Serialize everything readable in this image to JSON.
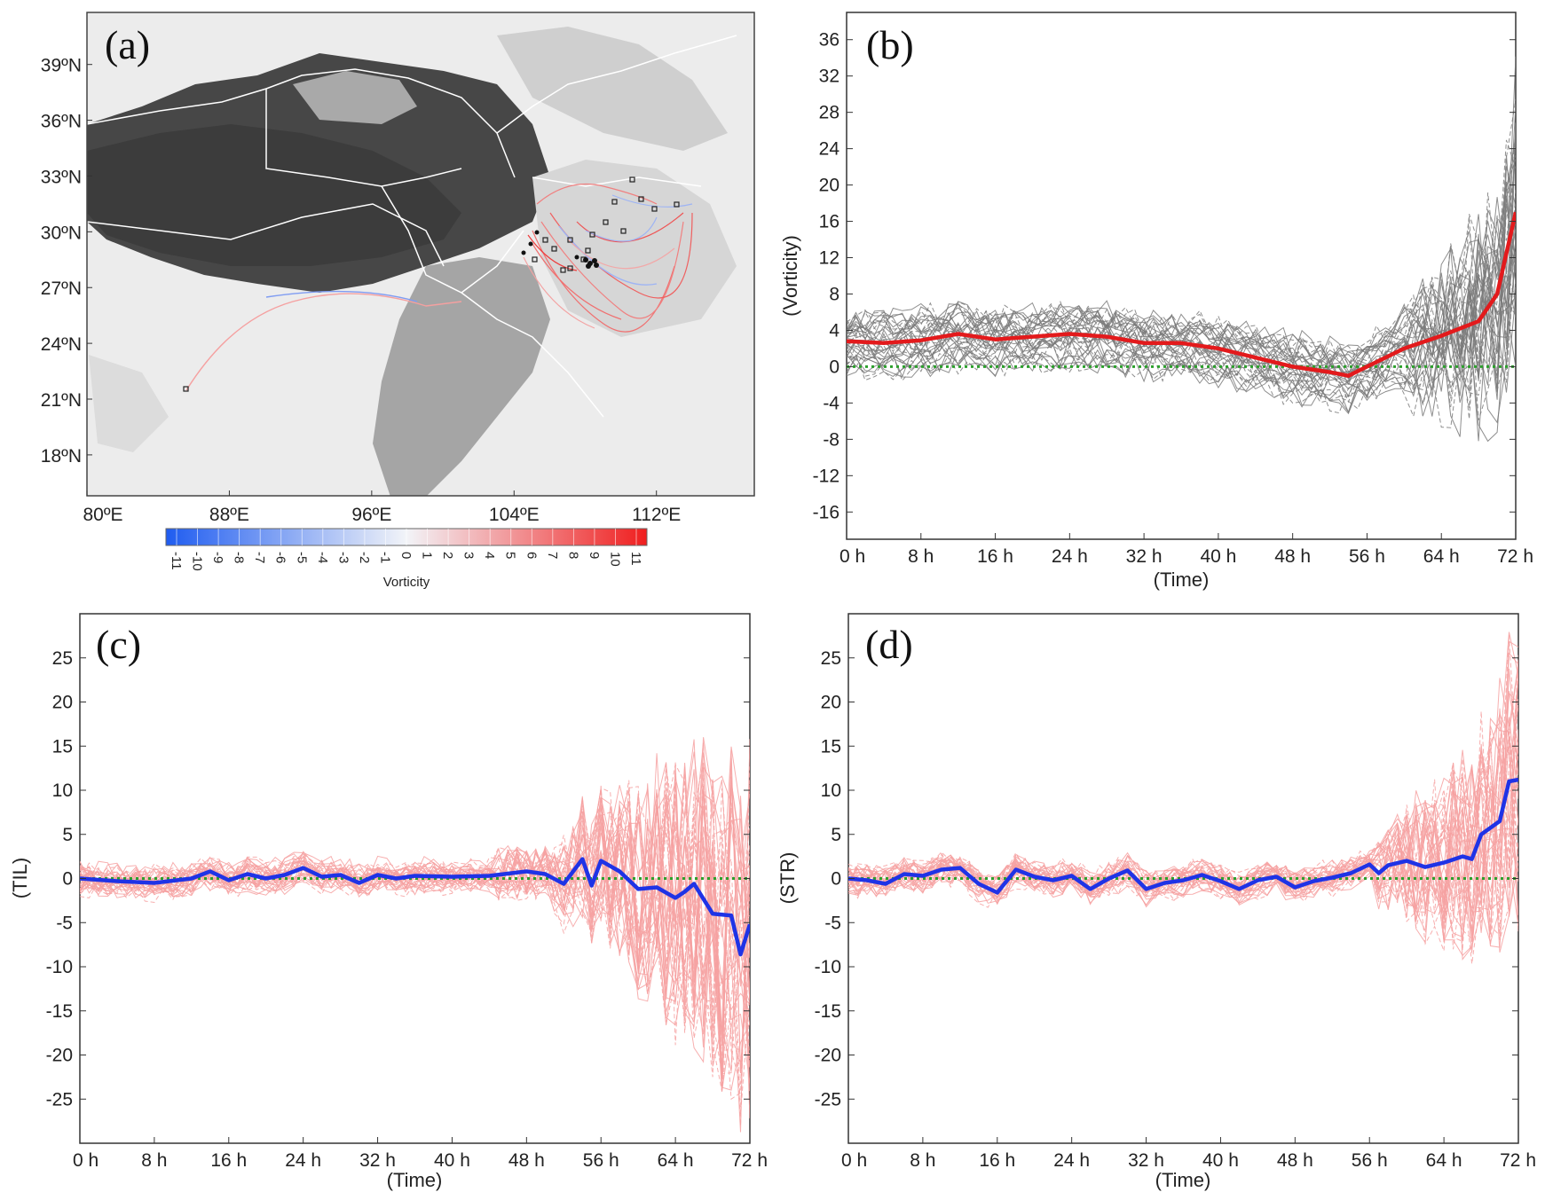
{
  "panels": {
    "a": {
      "label": "(a)"
    },
    "b": {
      "label": "(b)"
    },
    "c": {
      "label": "(c)"
    },
    "d": {
      "label": "(d)"
    }
  },
  "chart_data": [
    {
      "panel": "a",
      "type": "map",
      "lat_ticks": [
        "39ºN",
        "36ºN",
        "33ºN",
        "30ºN",
        "27ºN",
        "24ºN",
        "21ºN",
        "18ºN"
      ],
      "lon_ticks": [
        "80ºE",
        "88ºE",
        "96ºE",
        "104ºE",
        "112ºE"
      ],
      "xlim": [
        80,
        117.5
      ],
      "ylim": [
        15.8,
        41.8
      ],
      "colorbar": {
        "label": "Vorticity",
        "ticks": [
          "-11",
          "-10",
          "-9",
          "-8",
          "-7",
          "-6",
          "-5",
          "-4",
          "-3",
          "-2",
          "-1",
          "0",
          "1",
          "2",
          "3",
          "4",
          "5",
          "6",
          "7",
          "8",
          "9",
          "10",
          "11"
        ],
        "low_color": "#1f5cf0",
        "zero_color": "#f2f4f8",
        "high_color": "#f01e1e"
      },
      "colors": {
        "terrain_high": "#3a3a3a",
        "terrain_low": "#f2f2f2",
        "border": "#ffffff"
      }
    },
    {
      "panel": "b",
      "type": "line",
      "ylabel": "(Vorticity)",
      "xlabel": "(Time)",
      "xticks": [
        "0 h",
        "8 h",
        "16 h",
        "24 h",
        "32 h",
        "40 h",
        "48 h",
        "56 h",
        "64 h",
        "72 h"
      ],
      "yticks": [
        "36",
        "32",
        "28",
        "24",
        "20",
        "16",
        "12",
        "8",
        "4",
        "0",
        "-4",
        "-8",
        "-12",
        "-16"
      ],
      "ylim": [
        -19,
        39
      ],
      "xlim": [
        0,
        72
      ],
      "zero_line_color": "#2ca02c",
      "ensemble_color": "#7a7a7a",
      "series": [
        {
          "color": "#e31a1c",
          "x": [
            0,
            4,
            8,
            12,
            16,
            20,
            24,
            28,
            32,
            36,
            40,
            44,
            48,
            52,
            54,
            56,
            60,
            64,
            68,
            70,
            72
          ],
          "values": [
            2.8,
            2.6,
            2.9,
            3.6,
            3.0,
            3.3,
            3.6,
            3.3,
            2.6,
            2.6,
            2.0,
            1.0,
            0.0,
            -0.6,
            -1.0,
            0.0,
            2.0,
            3.4,
            5.0,
            8.0,
            17.0
          ]
        }
      ]
    },
    {
      "panel": "c",
      "type": "line",
      "ylabel": "(TIL)",
      "xlabel": "(Time)",
      "xticks": [
        "0 h",
        "8 h",
        "16 h",
        "24 h",
        "32 h",
        "40 h",
        "48 h",
        "56 h",
        "64 h",
        "72 h"
      ],
      "yticks": [
        "25",
        "20",
        "15",
        "10",
        "5",
        "0",
        "-5",
        "-10",
        "-15",
        "-20",
        "-25"
      ],
      "ylim": [
        -30,
        30
      ],
      "xlim": [
        0,
        72
      ],
      "zero_line_color": "#2ca02c",
      "ensemble_color": "#f6a1a1",
      "series": [
        {
          "color": "#1f33e6",
          "x": [
            0,
            4,
            8,
            12,
            14,
            16,
            18,
            20,
            22,
            24,
            26,
            28,
            30,
            32,
            34,
            36,
            40,
            44,
            48,
            50,
            52,
            54,
            55,
            56,
            58,
            60,
            62,
            64,
            65,
            66,
            68,
            70,
            71,
            72
          ],
          "values": [
            0,
            -0.3,
            -0.5,
            0,
            0.8,
            -0.2,
            0.5,
            0,
            0.4,
            1.2,
            0.2,
            0.4,
            -0.5,
            0.4,
            0,
            0.3,
            0.2,
            0.3,
            0.8,
            0.5,
            -0.6,
            2.2,
            -0.8,
            2.0,
            0.8,
            -1.2,
            -1.0,
            -2.2,
            -1.5,
            -0.6,
            -4.0,
            -4.2,
            -8.6,
            -5.2
          ]
        }
      ]
    },
    {
      "panel": "d",
      "type": "line",
      "ylabel": "(STR)",
      "xlabel": "(Time)",
      "xticks": [
        "0 h",
        "8 h",
        "16 h",
        "24 h",
        "32 h",
        "40 h",
        "48 h",
        "56 h",
        "64 h",
        "72 h"
      ],
      "yticks": [
        "25",
        "20",
        "15",
        "10",
        "5",
        "0",
        "-5",
        "-10",
        "-15",
        "-20",
        "-25"
      ],
      "ylim": [
        -30,
        30
      ],
      "xlim": [
        0,
        72
      ],
      "zero_line_color": "#2ca02c",
      "ensemble_color": "#f6a1a1",
      "series": [
        {
          "color": "#1f33e6",
          "x": [
            0,
            2,
            4,
            6,
            8,
            10,
            12,
            14,
            16,
            18,
            20,
            22,
            24,
            26,
            28,
            30,
            32,
            34,
            36,
            38,
            40,
            42,
            44,
            46,
            48,
            50,
            52,
            54,
            56,
            57,
            58,
            60,
            62,
            64,
            66,
            67,
            68,
            70,
            71,
            72
          ],
          "values": [
            0,
            -0.2,
            -0.6,
            0.5,
            0.3,
            1.0,
            1.2,
            -0.6,
            -1.6,
            1.0,
            0.2,
            -0.2,
            0.3,
            -1.2,
            0,
            0.9,
            -1.2,
            -0.5,
            -0.2,
            0.4,
            -0.3,
            -1.2,
            -0.2,
            0.2,
            -1.0,
            -0.3,
            0.1,
            0.6,
            1.6,
            0.6,
            1.5,
            2.0,
            1.3,
            1.8,
            2.5,
            2.2,
            5.0,
            6.5,
            11.0,
            11.2
          ]
        }
      ]
    }
  ]
}
